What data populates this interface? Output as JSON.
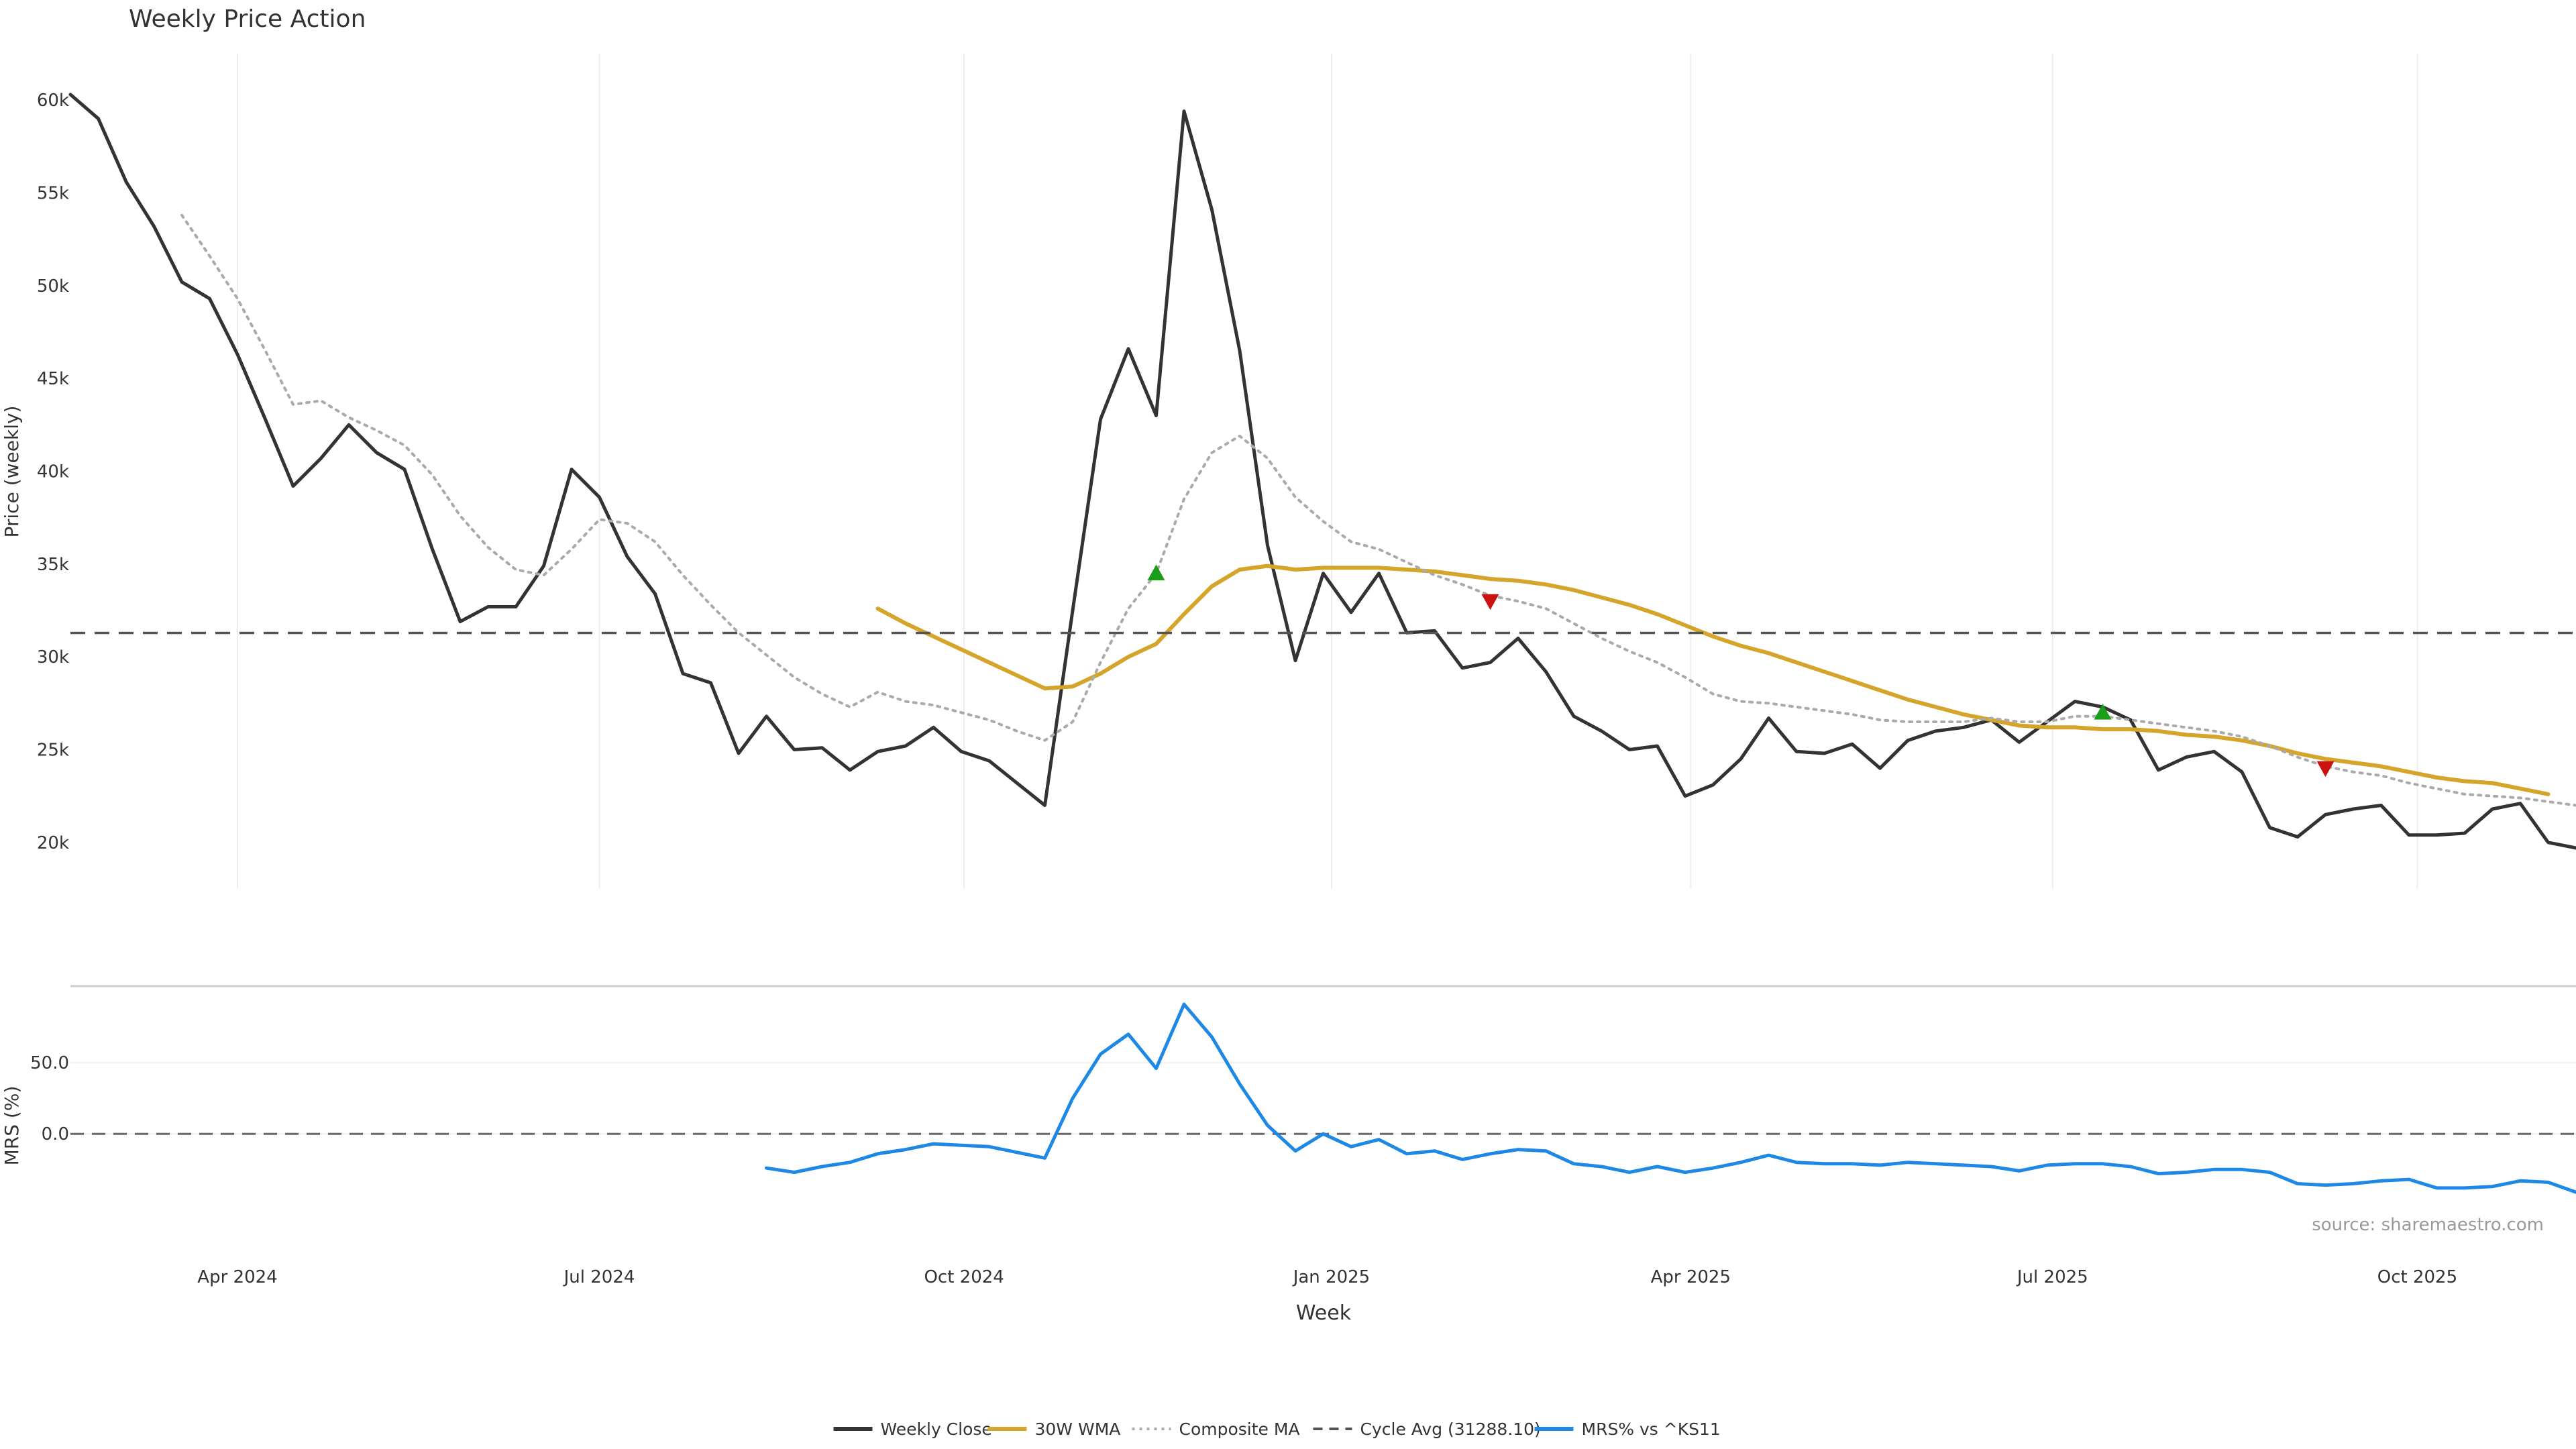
{
  "chart_data": {
    "type": "line",
    "title": "Weekly Price Action",
    "source": "source: sharemaestro.com",
    "price_panel": {
      "ylabel": "Price (weekly)",
      "ylim": [
        17500,
        62500
      ],
      "yticks": [
        20000,
        25000,
        30000,
        35000,
        40000,
        45000,
        50000,
        55000,
        60000
      ],
      "ytick_labels": [
        "20k",
        "25k",
        "30k",
        "35k",
        "40k",
        "45k",
        "50k",
        "55k",
        "60k"
      ],
      "cycle_avg": 31288.1
    },
    "mrs_panel": {
      "ylabel": "MRS (%)",
      "ylim": [
        -80,
        100
      ],
      "yticks": [
        0,
        50
      ],
      "ytick_labels": [
        "0.0",
        "50.0"
      ]
    },
    "x_axis": {
      "label": "Week",
      "ticks": [
        {
          "week": 6,
          "label": "Apr 2024"
        },
        {
          "week": 19,
          "label": "Jul 2024"
        },
        {
          "week": 32.1,
          "label": "Oct 2024"
        },
        {
          "week": 45.3,
          "label": "Jan 2025"
        },
        {
          "week": 58.2,
          "label": "Apr 2025"
        },
        {
          "week": 71.2,
          "label": "Jul 2025"
        },
        {
          "week": 84.3,
          "label": "Oct 2025"
        }
      ]
    },
    "series": [
      {
        "name": "Weekly Close",
        "color": "#333333",
        "style": "solid",
        "start": 0,
        "values": [
          60300,
          59000,
          55600,
          53200,
          50200,
          49300,
          46300,
          42800,
          39200,
          40700,
          42500,
          41000,
          40100,
          35800,
          31900,
          32700,
          32700,
          34900,
          40100,
          38600,
          35400,
          33400,
          29100,
          28600,
          24800,
          26800,
          25000,
          25100,
          23900,
          24900,
          25200,
          26200,
          24900,
          24400,
          23200,
          22000,
          32500,
          42800,
          46600,
          43000,
          59400,
          54100,
          46500,
          36000,
          29800,
          34500,
          32400,
          34500,
          31300,
          31400,
          29400,
          29700,
          31000,
          29200,
          26800,
          26000,
          25000,
          25200,
          22500,
          23100,
          24500,
          26700,
          24900,
          24800,
          25300,
          24000,
          25500,
          26000,
          26200,
          26600,
          25400,
          26500,
          27600,
          27300,
          26600,
          23900,
          24600,
          24900,
          23800,
          20800,
          20300,
          21500,
          21800,
          22000,
          20400,
          20400,
          20500,
          21800,
          22100,
          20000,
          19700
        ]
      },
      {
        "name": "30W WMA",
        "color": "#D4A52A",
        "style": "solid",
        "start": 29,
        "values": [
          32600,
          31800,
          31100,
          30400,
          29700,
          29000,
          28300,
          28400,
          29100,
          30000,
          30700,
          32300,
          33800,
          34700,
          34900,
          34700,
          34800,
          34800,
          34800,
          34700,
          34600,
          34400,
          34200,
          34100,
          33900,
          33600,
          33200,
          32800,
          32300,
          31700,
          31100,
          30600,
          30200,
          29700,
          29200,
          28700,
          28200,
          27700,
          27300,
          26900,
          26600,
          26300,
          26200,
          26200,
          26100,
          26100,
          26000,
          25800,
          25700,
          25500,
          25200,
          24800,
          24500,
          24300,
          24100,
          23800,
          23500,
          23300,
          23200,
          22900,
          22600
        ]
      },
      {
        "name": "Composite MA",
        "color": "#aaaaaa",
        "style": "dotted",
        "start": 4,
        "values": [
          53800,
          51600,
          49300,
          46500,
          43600,
          43800,
          42900,
          42200,
          41400,
          39800,
          37600,
          35900,
          34700,
          34400,
          35800,
          37400,
          37200,
          36200,
          34400,
          32800,
          31300,
          30100,
          28900,
          28000,
          27300,
          28100,
          27600,
          27400,
          27000,
          26600,
          26000,
          25500,
          26500,
          29700,
          32600,
          34500,
          38500,
          41000,
          41900,
          40700,
          38600,
          37300,
          36200,
          35800,
          35100,
          34400,
          33900,
          33300,
          33000,
          32600,
          31800,
          31000,
          30300,
          29700,
          28900,
          28000,
          27600,
          27500,
          27300,
          27100,
          26900,
          26600,
          26500,
          26500,
          26500,
          26700,
          26500,
          26500,
          26800,
          26800,
          26600,
          26400,
          26200,
          26000,
          25700,
          25200,
          24600,
          24100,
          23800,
          23600,
          23200,
          22900,
          22600,
          22500,
          22400,
          22200,
          22000
        ]
      },
      {
        "name": "Cycle Avg (31288.10)",
        "color": "#555555",
        "style": "dashed",
        "value": 31288.1
      },
      {
        "name": "MRS% vs ^KS11",
        "color": "#1E88E5",
        "style": "solid",
        "panel": "mrs",
        "start": 25,
        "values": [
          -24,
          -27,
          -23,
          -20,
          -14,
          -11,
          -7,
          -8,
          -9,
          -13,
          -17,
          25,
          56,
          70,
          46,
          91,
          68,
          35,
          6,
          -12,
          0,
          -9,
          -4,
          -14,
          -12,
          -18,
          -14,
          -11,
          -12,
          -21,
          -23,
          -27,
          -23,
          -27,
          -24,
          -20,
          -15,
          -20,
          -21,
          -21,
          -22,
          -20,
          -21,
          -22,
          -23,
          -26,
          -22,
          -21,
          -21,
          -23,
          -28,
          -27,
          -25,
          -25,
          -27,
          -35,
          -36,
          -35,
          -33,
          -32,
          -38,
          -38,
          -37,
          -33,
          -34,
          -41
        ]
      }
    ],
    "signals": [
      {
        "type": "buy",
        "week": 39,
        "value": 34500,
        "color": "#1a9e1a"
      },
      {
        "type": "sell",
        "week": 51,
        "value": 33000,
        "color": "#cc1111"
      },
      {
        "type": "buy",
        "week": 73,
        "value": 27000,
        "color": "#1a9e1a"
      },
      {
        "type": "sell",
        "week": 81,
        "value": 24000,
        "color": "#cc1111"
      }
    ],
    "legend": {
      "position": "bottom-center",
      "items": [
        "Weekly Close",
        "30W WMA",
        "Composite MA",
        "Cycle Avg (31288.10)",
        "MRS% vs ^KS11"
      ]
    }
  }
}
